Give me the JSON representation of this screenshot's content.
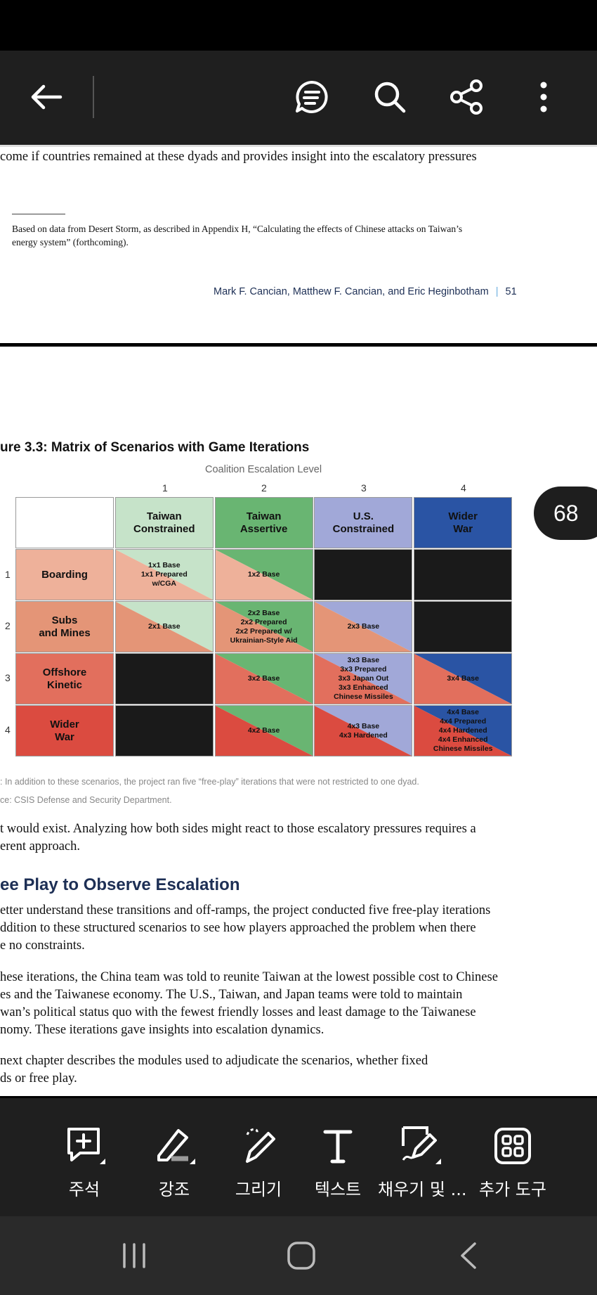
{
  "page1": {
    "line_top": "come if countries remained at these dyads and provides insight into the escalatory pressures",
    "footnote_line1": "Based on data from Desert Storm, as described in Appendix H, “Calculating the effects of Chinese attacks on Taiwan’s",
    "footnote_line2": "energy system” (forthcoming).",
    "running_footer_authors": "Mark F. Cancian, Matthew F. Cancian, and Eric Heginbotham",
    "running_footer_sep": "|",
    "page_number": "51"
  },
  "figure": {
    "title": "ure 3.3: Matrix of Scenarios with Game Iterations",
    "x_axis_label": "Coalition Escalation Level",
    "col_ticks": [
      "1",
      "2",
      "3",
      "4"
    ],
    "row_ticks": [
      "1",
      "2",
      "3",
      "4"
    ],
    "col_headers": [
      "Taiwan\nConstrained",
      "Taiwan\nAssertive",
      "U.S.\nConstrained",
      "Wider\nWar"
    ],
    "row_headers": [
      "Boarding",
      "Subs\nand Mines",
      "Offshore\nKinetic",
      "Wider\nWar"
    ],
    "cells": [
      [
        "1x1 Base\n1x1 Prepared\nw/CGA",
        "1x2 Base",
        "",
        ""
      ],
      [
        "2x1 Base",
        "2x2 Base\n2x2 Prepared\n2x2 Prepared w/\nUkrainian-Style Aid",
        "2x3 Base",
        ""
      ],
      [
        "",
        "3x2 Base",
        "3x3 Base\n3x3 Prepared\n3x3 Japan Out\n3x3 Enhanced\nChinese Missiles",
        "3x4 Base"
      ],
      [
        "",
        "4x2 Base",
        "4x3 Base\n4x3 Hardened",
        "4x4 Base\n4x4 Prepared\n4x4 Hardened\n4x4 Enhanced\nChinese Missiles"
      ]
    ],
    "note": ": In addition to these scenarios, the project ran five “free-play” iterations that were not restricted to one dyad.",
    "source": "ce: CSIS Defense and Security Department."
  },
  "colors": {
    "col": [
      "#c6e3c9",
      "#69b572",
      "#a1a8d8",
      "#2a54a4"
    ],
    "row": [
      "#eeb19a",
      "#e49577",
      "#e26f5d",
      "#db4b40"
    ],
    "black": "#1a1a1a",
    "heading": "#1d2f55"
  },
  "page2_text": {
    "para1_line1": "t would exist. Analyzing how both sides might react to those escalatory pressures requires a",
    "para1_line2": "erent approach.",
    "heading": "ee Play to Observe Escalation",
    "para2_line1": "etter understand these transitions and off-ramps, the project conducted five free-play iterations",
    "para2_line2": "ddition to these structured scenarios to see how players approached the problem when there",
    "para2_line3": "e no constraints.",
    "para3_line1": "hese iterations, the China team was told to reunite Taiwan at the lowest possible cost to Chinese",
    "para3_line2": "es and the Taiwanese economy. The U.S., Taiwan, and Japan teams were told to maintain",
    "para3_line3": "wan’s political status quo with the fewest friendly losses and least damage to the Taiwanese",
    "para3_line4": "nomy. These iterations gave insights into escalation dynamics.",
    "para4_line1": " next chapter describes the modules used to adjudicate the scenarios, whether fixed",
    "para4_line2": "ds or free play."
  },
  "page_badge": "68",
  "bottom_tools": [
    {
      "label": "주석",
      "icon": "comment-add-icon"
    },
    {
      "label": "강조",
      "icon": "highlighter-icon"
    },
    {
      "label": "그리기",
      "icon": "draw-pen-icon"
    },
    {
      "label": "텍스트",
      "icon": "text-icon"
    },
    {
      "label": "채우기 및 ...",
      "icon": "fill-sign-icon"
    },
    {
      "label": "추가 도구",
      "icon": "more-tools-grid-icon"
    }
  ]
}
